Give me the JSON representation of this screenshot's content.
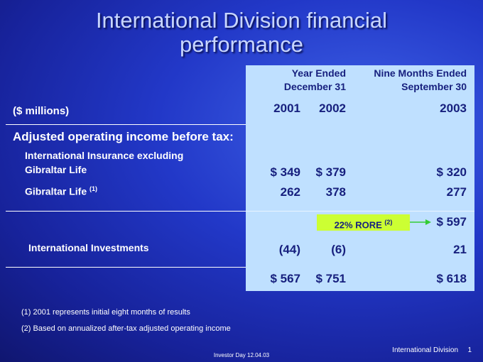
{
  "title": "International Division financial performance",
  "table": {
    "header": {
      "units": "($ millions)",
      "group_1": [
        "Year Ended",
        "December 31"
      ],
      "group_2": [
        "Nine Months Ended",
        "September 30"
      ],
      "years": [
        "2001",
        "2002",
        "2003"
      ]
    },
    "section": "Adjusted operating income before tax:",
    "rows": [
      {
        "label": [
          "International Insurance excluding",
          "Gibraltar Life"
        ],
        "values": [
          "$ 349",
          "$ 379",
          "$ 320"
        ]
      },
      {
        "label": [
          "Gibraltar Life"
        ],
        "note": "(1)",
        "values": [
          "262",
          "378",
          "277"
        ]
      },
      {
        "callout": "22% RORE",
        "note": "(2)",
        "values": [
          "$ 597"
        ]
      },
      {
        "label": [
          "International Investments"
        ],
        "values": [
          "(44)",
          "(6)",
          "21"
        ]
      },
      {
        "values": [
          "$ 567",
          "$ 751",
          "$ 618"
        ]
      }
    ]
  },
  "footnotes": [
    "(1) 2001 represents initial eight months of results",
    "(2) Based on annualized after-tax adjusted operating income"
  ],
  "footer": {
    "event": "Investor Day 12.04.03",
    "section": "International Division",
    "page": "1"
  }
}
